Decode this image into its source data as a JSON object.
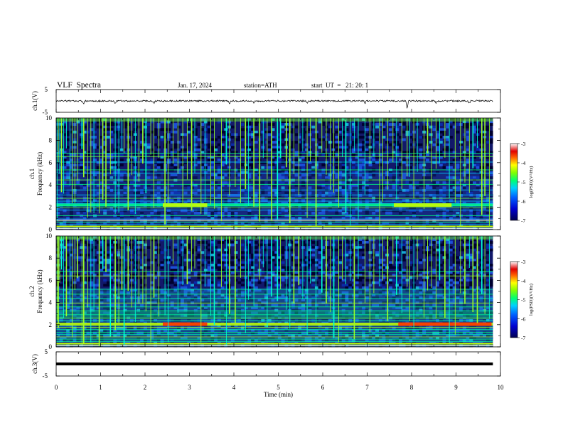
{
  "header": {
    "title": "VLF  Spectra",
    "date": "Jan. 17, 2024",
    "station": "station=ATH",
    "start": "start  UT  =   21: 20: 1"
  },
  "chart_data": [
    {
      "type": "line",
      "panel": "ch1-waveform",
      "ylabel": "ch.1(V)",
      "ytick_labels": [
        "5",
        "-5"
      ],
      "ylim": [
        -5,
        5
      ],
      "baseline": 0,
      "noise": 0.35,
      "dips": [
        {
          "x": 0.62,
          "y": -1.6
        },
        {
          "x": 1.33,
          "y": -1.2
        },
        {
          "x": 2.2,
          "y": -1.0
        },
        {
          "x": 3.9,
          "y": -1.4
        },
        {
          "x": 4.45,
          "y": -0.9
        },
        {
          "x": 5.65,
          "y": -1.1
        },
        {
          "x": 6.95,
          "y": -1.2
        },
        {
          "x": 7.9,
          "y": -3.6
        },
        {
          "x": 8.55,
          "y": -1.0
        },
        {
          "x": 9.3,
          "y": -1.1
        }
      ]
    },
    {
      "type": "heatmap",
      "panel": "ch1-spectrogram",
      "ylabel": "ch.1 Frequency (kHz)",
      "ytick_labels": [
        "0",
        "2",
        "4",
        "6",
        "8",
        "10"
      ],
      "ylim": [
        0,
        10
      ],
      "colorbar": {
        "label": "log(PSD)(V²/Hz)",
        "range": [
          -7,
          -3
        ],
        "tick_labels": [
          "-3",
          "-4",
          "-5",
          "-6",
          "-7"
        ]
      },
      "bands_khz": [
        0.12,
        0.25,
        0.45,
        0.62,
        0.78,
        0.95,
        1.25,
        1.75,
        1.95,
        2.15,
        2.35,
        2.55,
        2.8,
        3.1,
        3.55,
        4.05,
        4.45,
        5.05,
        5.35,
        6.05,
        6.55,
        6.85
      ],
      "enhanced_band": {
        "f_khz": 2.2,
        "intervals_min": [
          [
            2.4,
            3.4
          ],
          [
            7.6,
            8.9
          ]
        ]
      }
    },
    {
      "type": "heatmap",
      "panel": "ch2-spectrogram",
      "ylabel": "ch.2 Frequency (kHz)",
      "ytick_labels": [
        "0",
        "2",
        "4",
        "6",
        "8",
        "10"
      ],
      "ylim": [
        0,
        10
      ],
      "colorbar": {
        "label": "log(PSD)(V²/Hz)",
        "range": [
          -7,
          -3
        ],
        "tick_labels": [
          "-3",
          "-4",
          "-5",
          "-6",
          "-7"
        ]
      },
      "bands_khz": [
        0.12,
        0.3,
        0.5,
        0.7,
        0.9,
        1.1,
        1.3,
        1.55,
        1.75,
        1.95,
        2.15,
        2.35,
        2.6,
        2.9,
        3.25,
        3.6,
        3.95,
        4.35,
        4.75,
        5.2,
        6.4,
        6.8
      ],
      "enhanced_band": {
        "f_khz": 2.05,
        "intervals_min": [
          [
            2.4,
            3.4
          ],
          [
            7.7,
            9.8
          ]
        ]
      }
    },
    {
      "type": "line",
      "panel": "ch3-waveform",
      "ylabel": "ch.3(V)",
      "ytick_labels": [
        "5",
        "-5"
      ],
      "ylim": [
        -5,
        5
      ],
      "baseline": 0,
      "noise": 0
    }
  ],
  "x_axis": {
    "label": "Time  (min)",
    "tick_labels": [
      "0",
      "1",
      "2",
      "3",
      "4",
      "5",
      "6",
      "7",
      "8",
      "9",
      "10"
    ],
    "xlim": [
      0,
      10
    ],
    "data_end": 9.83
  },
  "sferics_min": [
    0.02,
    0.05,
    0.08,
    0.12,
    0.17,
    0.23,
    0.31,
    0.36,
    0.42,
    0.48,
    0.58,
    0.62,
    0.71,
    0.78,
    0.85,
    0.97,
    1.05,
    1.12,
    1.22,
    1.33,
    1.41,
    1.48,
    1.53,
    1.62,
    1.7,
    1.78,
    1.86,
    1.95,
    2.02,
    2.13,
    2.2,
    2.31,
    2.45,
    2.52,
    2.63,
    2.74,
    2.85,
    2.95,
    3.05,
    3.12,
    3.26,
    3.35,
    3.48,
    3.56,
    3.72,
    3.83,
    3.9,
    4.03,
    4.15,
    4.26,
    4.33,
    4.45,
    4.58,
    4.66,
    4.75,
    4.85,
    4.98,
    5.05,
    5.18,
    5.26,
    5.35,
    5.46,
    5.55,
    5.65,
    5.72,
    5.85,
    5.98,
    6.08,
    6.17,
    6.25,
    6.36,
    6.44,
    6.52,
    6.62,
    6.71,
    6.8,
    6.95,
    7.06,
    7.15,
    7.28,
    7.35,
    7.46,
    7.58,
    7.66,
    7.78,
    7.9,
    7.96,
    8.05,
    8.13,
    8.28,
    8.36,
    8.45,
    8.55,
    8.63,
    8.75,
    8.85,
    8.98,
    9.1,
    9.2,
    9.3,
    9.38,
    9.48,
    9.58,
    9.65,
    9.75
  ]
}
